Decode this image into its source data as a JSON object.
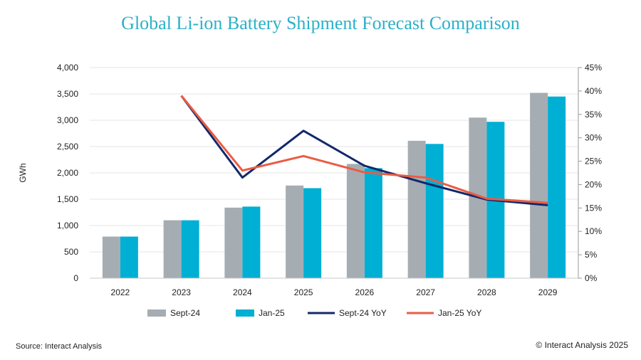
{
  "colors": {
    "title": "#2bb0c9",
    "sept24_bar": "#a5adb3",
    "jan25_bar": "#00afd4",
    "sept24_line": "#13286b",
    "jan25_line": "#ea5c44",
    "grid": "#e6e6e6"
  },
  "footer": {
    "source": "Source: Interact Analysis",
    "copyright": "© Interact Analysis 2025"
  },
  "chart_data": {
    "type": "bar",
    "title": "Global Li-ion Battery Shipment Forecast Comparison",
    "ylabel": "GWh",
    "xlabel": "",
    "categories": [
      "2022",
      "2023",
      "2024",
      "2025",
      "2026",
      "2027",
      "2028",
      "2029"
    ],
    "ylim": [
      0,
      4000
    ],
    "y_ticks": [
      0,
      500,
      1000,
      1500,
      2000,
      2500,
      3000,
      3500,
      4000
    ],
    "y_tick_labels": [
      "0",
      "500",
      "1,000",
      "1,500",
      "2,000",
      "2,500",
      "3,000",
      "3,500",
      "4,000"
    ],
    "y2lim": [
      0,
      45
    ],
    "y2_ticks": [
      0,
      5,
      10,
      15,
      20,
      25,
      30,
      35,
      40,
      45
    ],
    "y2_tick_labels": [
      "0%",
      "5%",
      "10%",
      "15%",
      "20%",
      "25%",
      "30%",
      "35%",
      "40%",
      "45%"
    ],
    "grid": true,
    "legend_position": "bottom",
    "bar_series": [
      {
        "name": "Sept-24",
        "values": [
          790,
          1100,
          1340,
          1760,
          2170,
          2610,
          3050,
          3520
        ]
      },
      {
        "name": "Jan-25",
        "values": [
          790,
          1100,
          1360,
          1710,
          2090,
          2550,
          2970,
          3450
        ]
      }
    ],
    "line_series": [
      {
        "name": "Sept-24 YoY",
        "axis": "right",
        "values": [
          null,
          39,
          21.5,
          31.5,
          24,
          20.3,
          16.8,
          15.6
        ]
      },
      {
        "name": "Jan-25 YoY",
        "axis": "right",
        "values": [
          null,
          39,
          23,
          26.1,
          22.6,
          21.5,
          17,
          16.1
        ]
      }
    ]
  }
}
